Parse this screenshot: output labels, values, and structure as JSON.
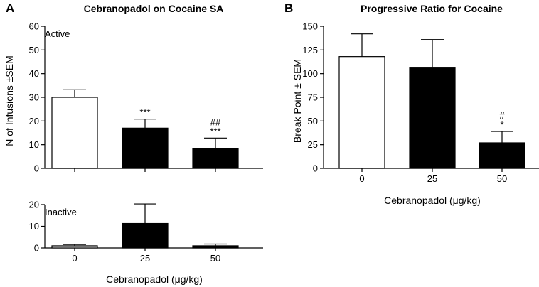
{
  "chart_data": [
    {
      "id": "A-active",
      "type": "bar",
      "panel_letter": "A",
      "title": "Cebranopadol on Cocaine SA",
      "subpanel_label": "Active",
      "ylabel": "N of Infusions ±SEM",
      "xlabel": "",
      "ylim": [
        0,
        60
      ],
      "yticks": [
        0,
        10,
        20,
        30,
        40,
        50,
        60
      ],
      "categories": [
        "0",
        "25",
        "50"
      ],
      "values": [
        30,
        17,
        8.5
      ],
      "errors": [
        3.2,
        3.8,
        4.3
      ],
      "fills": [
        "#ffffff",
        "#000000",
        "#000000"
      ],
      "annotations": [
        [],
        [
          "***"
        ],
        [
          "##",
          "***"
        ]
      ]
    },
    {
      "id": "A-inactive",
      "type": "bar",
      "subpanel_label": "Inactive",
      "xlabel": "Cebranopadol (μg/kg)",
      "ylim": [
        0,
        20
      ],
      "yticks": [
        0,
        10,
        20
      ],
      "categories": [
        "0",
        "25",
        "50"
      ],
      "values": [
        1,
        11.3,
        1
      ],
      "errors": [
        0.6,
        9,
        0.8
      ],
      "fills": [
        "#ffffff",
        "#000000",
        "#000000"
      ],
      "annotations": [
        [],
        [],
        []
      ]
    },
    {
      "id": "B",
      "type": "bar",
      "panel_letter": "B",
      "title": "Progressive Ratio for Cocaine",
      "ylabel": "Break Point ± SEM",
      "xlabel": "Cebranopadol (μg/kg)",
      "ylim": [
        0,
        150
      ],
      "yticks": [
        0,
        25,
        50,
        75,
        100,
        125,
        150
      ],
      "categories": [
        "0",
        "25",
        "50"
      ],
      "values": [
        118,
        106,
        27
      ],
      "errors": [
        24,
        30,
        12
      ],
      "fills": [
        "#ffffff",
        "#000000",
        "#000000"
      ],
      "annotations": [
        [],
        [],
        [
          "#",
          "*"
        ]
      ]
    }
  ]
}
